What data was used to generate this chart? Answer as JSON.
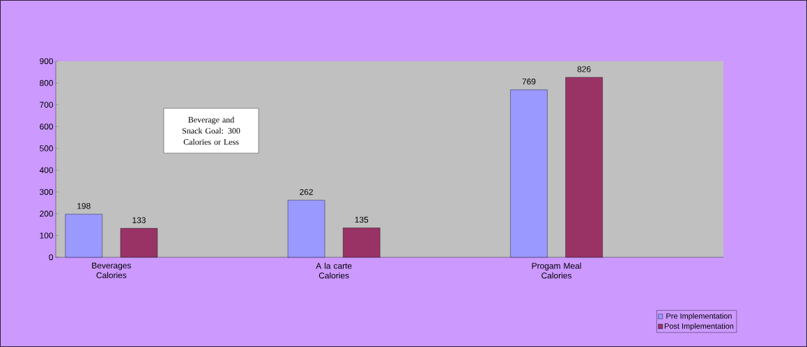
{
  "chart_data": {
    "type": "bar",
    "categories": [
      "Beverages Calories",
      "A la carte Calories",
      "Progam Meal Calories"
    ],
    "series": [
      {
        "name": "Pre Implementation",
        "color": "#9999ff",
        "values": [
          198,
          262,
          769
        ]
      },
      {
        "name": "Post Implementation",
        "color": "#993366",
        "values": [
          133,
          135,
          826
        ]
      }
    ],
    "ylim": [
      0,
      900
    ],
    "yticks": [
      0,
      100,
      200,
      300,
      400,
      500,
      600,
      700,
      800,
      900
    ],
    "data_labels": true,
    "legend": "bottom right",
    "grid": false,
    "annotations": [
      "Beverage and Snack Goal: 300 Calories or Less"
    ]
  }
}
